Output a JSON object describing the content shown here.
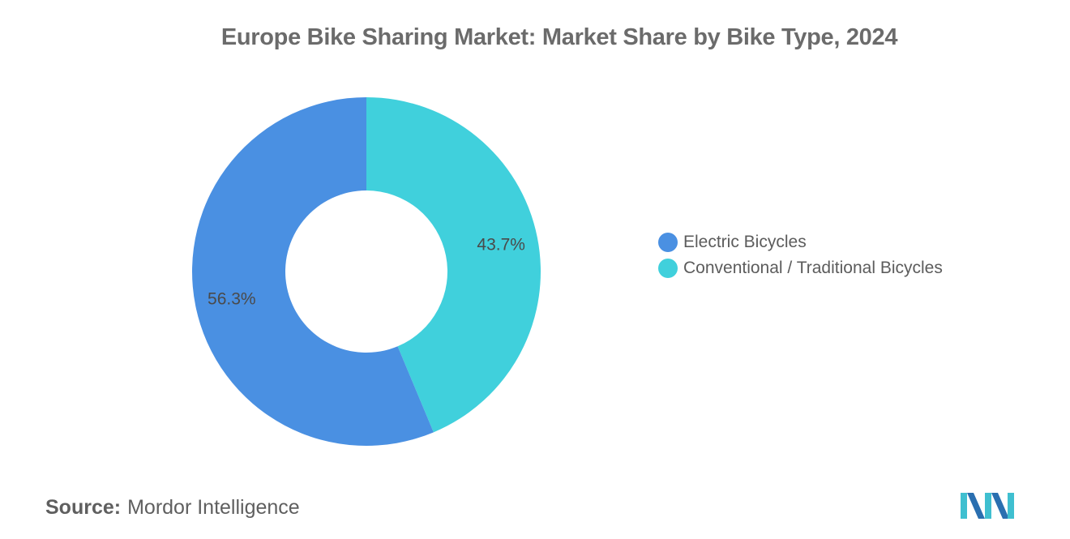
{
  "title": "Europe Bike Sharing Market: Market Share by Bike Type, 2024",
  "chart_data": {
    "type": "pie",
    "donut": true,
    "title": "Europe Bike Sharing Market: Market Share by Bike Type, 2024",
    "slices": [
      {
        "label": "Electric Bicycles",
        "value": 56.3,
        "display": "56.3%",
        "color": "#4a90e2"
      },
      {
        "label": "Conventional / Traditional Bicycles",
        "value": 43.7,
        "display": "43.7%",
        "color": "#40d0dc"
      }
    ],
    "legend_position": "right"
  },
  "legend": [
    {
      "label": "Electric Bicycles",
      "color": "#4a90e2"
    },
    {
      "label": "Conventional / Traditional Bicycles",
      "color": "#40d0dc"
    }
  ],
  "source": {
    "label": "Source:",
    "text": "Mordor Intelligence"
  },
  "logo": {
    "icon": "mordor-intelligence-logo",
    "colors": [
      "#3fbfd0",
      "#2a6fb0"
    ]
  }
}
